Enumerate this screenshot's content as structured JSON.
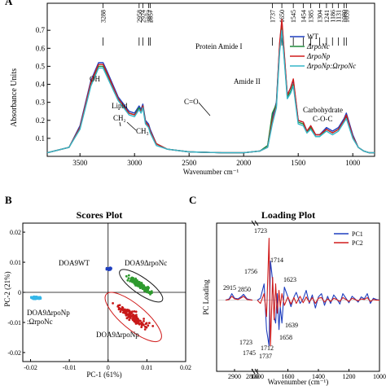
{
  "chart_data": [
    {
      "panel": "A",
      "type": "line",
      "xlabel": "Wavenumber cm⁻¹",
      "ylabel": "Absorbance Units",
      "xlim": [
        3800,
        800
      ],
      "ylim": [
        0,
        0.85
      ],
      "x_ticks": [
        3500,
        3000,
        2500,
        2000,
        1500,
        1000
      ],
      "y_ticks": [
        0.1,
        0.2,
        0.3,
        0.4,
        0.5,
        0.6,
        0.7
      ],
      "peak_labels": [
        "3288",
        "2958",
        "2924",
        "2872",
        "2857",
        "1737",
        "1650",
        "1545",
        "1454",
        "1385",
        "1304",
        "1241",
        "1186",
        "1131",
        "1080",
        "1059"
      ],
      "peak_positions": [
        3288,
        2958,
        2924,
        2872,
        2857,
        1737,
        1650,
        1545,
        1454,
        1385,
        1304,
        1241,
        1186,
        1131,
        1080,
        1059
      ],
      "annotations": [
        "OH",
        "Lipid",
        "CH₂",
        "CH₃",
        "C=O",
        "Protein Amide I",
        "Amide II",
        "Carbohydrate",
        "C-O-C"
      ],
      "legend": [
        "WT",
        "ΔrpoNc",
        "ΔrpoNp",
        "ΔrpoNp:ΩrpoNc"
      ],
      "legend_colors": [
        "#1f3fbf",
        "#1e8a3a",
        "#d01c1c",
        "#35b6c8"
      ],
      "legend_position": "top-right",
      "series": [
        {
          "name": "WT",
          "x": [
            3800,
            3600,
            3500,
            3400,
            3330,
            3288,
            3250,
            3150,
            3050,
            3000,
            2958,
            2940,
            2924,
            2900,
            2872,
            2857,
            2800,
            2700,
            2500,
            2200,
            2000,
            1850,
            1780,
            1737,
            1700,
            1670,
            1650,
            1630,
            1600,
            1570,
            1545,
            1500,
            1454,
            1420,
            1385,
            1340,
            1304,
            1241,
            1186,
            1131,
            1080,
            1059,
            1000,
            950,
            900,
            850,
            800
          ],
          "y": [
            0.02,
            0.05,
            0.17,
            0.42,
            0.52,
            0.52,
            0.47,
            0.33,
            0.25,
            0.24,
            0.28,
            0.26,
            0.29,
            0.2,
            0.18,
            0.15,
            0.07,
            0.04,
            0.025,
            0.02,
            0.02,
            0.03,
            0.06,
            0.22,
            0.3,
            0.62,
            0.75,
            0.58,
            0.34,
            0.38,
            0.42,
            0.2,
            0.19,
            0.14,
            0.17,
            0.12,
            0.12,
            0.16,
            0.14,
            0.16,
            0.21,
            0.24,
            0.12,
            0.05,
            0.03,
            0.02,
            0.02
          ]
        },
        {
          "name": "ΔrpoNc",
          "x": [
            3800,
            3600,
            3500,
            3400,
            3330,
            3288,
            3250,
            3150,
            3050,
            3000,
            2958,
            2940,
            2924,
            2900,
            2872,
            2857,
            2800,
            2700,
            2500,
            2200,
            2000,
            1850,
            1780,
            1737,
            1700,
            1670,
            1650,
            1630,
            1600,
            1570,
            1545,
            1500,
            1454,
            1420,
            1385,
            1340,
            1304,
            1241,
            1186,
            1131,
            1080,
            1059,
            1000,
            950,
            900,
            850,
            800
          ],
          "y": [
            0.02,
            0.05,
            0.16,
            0.4,
            0.5,
            0.5,
            0.45,
            0.32,
            0.24,
            0.23,
            0.27,
            0.25,
            0.28,
            0.19,
            0.17,
            0.14,
            0.07,
            0.04,
            0.025,
            0.02,
            0.02,
            0.03,
            0.06,
            0.24,
            0.29,
            0.6,
            0.72,
            0.56,
            0.33,
            0.36,
            0.4,
            0.19,
            0.18,
            0.13,
            0.16,
            0.11,
            0.11,
            0.15,
            0.13,
            0.15,
            0.2,
            0.22,
            0.11,
            0.05,
            0.03,
            0.02,
            0.02
          ]
        },
        {
          "name": "ΔrpoNp",
          "x": [
            3800,
            3600,
            3500,
            3400,
            3330,
            3288,
            3250,
            3150,
            3050,
            3000,
            2958,
            2940,
            2924,
            2900,
            2872,
            2857,
            2800,
            2700,
            2500,
            2200,
            2000,
            1850,
            1780,
            1737,
            1700,
            1670,
            1650,
            1630,
            1600,
            1570,
            1545,
            1500,
            1454,
            1420,
            1385,
            1340,
            1304,
            1241,
            1186,
            1131,
            1080,
            1059,
            1000,
            950,
            900,
            850,
            800
          ],
          "y": [
            0.02,
            0.05,
            0.16,
            0.41,
            0.51,
            0.51,
            0.46,
            0.32,
            0.24,
            0.23,
            0.26,
            0.25,
            0.28,
            0.19,
            0.17,
            0.14,
            0.07,
            0.04,
            0.025,
            0.02,
            0.02,
            0.03,
            0.05,
            0.2,
            0.28,
            0.63,
            0.76,
            0.59,
            0.34,
            0.38,
            0.43,
            0.2,
            0.19,
            0.14,
            0.17,
            0.12,
            0.12,
            0.15,
            0.13,
            0.15,
            0.2,
            0.23,
            0.11,
            0.05,
            0.03,
            0.02,
            0.02
          ]
        },
        {
          "name": "ΔrpoNp:ΩrpoNc",
          "x": [
            3800,
            3600,
            3500,
            3400,
            3330,
            3288,
            3250,
            3150,
            3050,
            3000,
            2958,
            2940,
            2924,
            2900,
            2872,
            2857,
            2800,
            2700,
            2500,
            2200,
            2000,
            1850,
            1780,
            1737,
            1700,
            1670,
            1650,
            1630,
            1600,
            1570,
            1545,
            1500,
            1454,
            1420,
            1385,
            1340,
            1304,
            1241,
            1186,
            1131,
            1080,
            1059,
            1000,
            950,
            900,
            850,
            800
          ],
          "y": [
            0.02,
            0.05,
            0.15,
            0.39,
            0.49,
            0.49,
            0.44,
            0.31,
            0.23,
            0.22,
            0.26,
            0.24,
            0.27,
            0.18,
            0.16,
            0.13,
            0.06,
            0.04,
            0.025,
            0.02,
            0.02,
            0.03,
            0.05,
            0.18,
            0.27,
            0.58,
            0.7,
            0.55,
            0.32,
            0.35,
            0.39,
            0.18,
            0.17,
            0.13,
            0.15,
            0.11,
            0.11,
            0.14,
            0.12,
            0.14,
            0.19,
            0.21,
            0.1,
            0.05,
            0.03,
            0.02,
            0.02
          ]
        }
      ]
    },
    {
      "panel": "B",
      "type": "scatter",
      "title": "Scores Plot",
      "xlabel": "PC-1 (61%)",
      "ylabel": "PC-2 (21%)",
      "xlim": [
        -0.022,
        0.02
      ],
      "ylim": [
        -0.023,
        0.023
      ],
      "x_ticks": [
        -0.02,
        -0.01,
        0,
        0.01,
        0.02
      ],
      "y_ticks": [
        -0.02,
        -0.01,
        0,
        0.01,
        0.02
      ],
      "x_tick_labels": [
        "-0.02",
        "-0.01",
        "0",
        "0.01",
        "0.02"
      ],
      "y_tick_labels": [
        "-0.02",
        "-0.01",
        "0",
        "0.01",
        "0.02"
      ],
      "groups": [
        {
          "name": "DOA9WT",
          "color": "#1f3fbf",
          "center": [
            0.0003,
            0.0078
          ],
          "spread": [
            0.0009,
            0.0005
          ],
          "n": 50
        },
        {
          "name": "DOA9ΔrpoNc",
          "color": "#2e9a2e",
          "center": [
            0.0085,
            0.0022
          ],
          "spread": [
            0.0035,
            0.003
          ],
          "n": 150
        },
        {
          "name": "DOA9ΔrpoNp",
          "color": "#c81818",
          "center": [
            0.0065,
            -0.0082
          ],
          "spread": [
            0.0048,
            0.0045
          ],
          "n": 150
        },
        {
          "name": "DOA9ΔrpoNp:ΩrpoNc",
          "color": "#35b6e8",
          "center": [
            -0.0185,
            -0.0018
          ],
          "spread": [
            0.0018,
            0.0006
          ],
          "n": 60
        }
      ],
      "label_texts": [
        "DOA9WT",
        "DOA9ΔrpoNc",
        "DOA9ΔrpoNp",
        "DOA9ΔrpoNp",
        ":ΩrpoNc"
      ]
    },
    {
      "panel": "C",
      "type": "line",
      "title": "Loading Plot",
      "xlabel": "Wavenumber (cm⁻¹)",
      "ylabel": "PC Loading",
      "xlim": [
        3000,
        1000
      ],
      "x_break": [
        2800,
        1800
      ],
      "x_ticks": [
        2900,
        2800,
        1800,
        1600,
        1400,
        1200,
        1000
      ],
      "legend": [
        "PC1",
        "PC2"
      ],
      "legend_colors": [
        "#1f3fbf",
        "#d01c1c"
      ],
      "legend_position": "top-right",
      "peak_labels": [
        "1723",
        "1714",
        "1756",
        "1623",
        "2915",
        "2850",
        "1639",
        "1658",
        "1723",
        "1745",
        "1712",
        "1737"
      ],
      "series": [
        {
          "name": "PC1",
          "x": [
            2950,
            2930,
            2915,
            2900,
            2880,
            2860,
            2850,
            2830,
            2800,
            1800,
            1780,
            1756,
            1740,
            1723,
            1714,
            1700,
            1690,
            1680,
            1670,
            1658,
            1650,
            1639,
            1623,
            1600,
            1580,
            1560,
            1545,
            1520,
            1500,
            1480,
            1460,
            1440,
            1420,
            1400,
            1380,
            1360,
            1340,
            1320,
            1300,
            1280,
            1260,
            1240,
            1220,
            1200,
            1180,
            1160,
            1140,
            1120,
            1100,
            1080,
            1060,
            1040,
            1020,
            1000
          ],
          "y": [
            0.0,
            0.02,
            0.1,
            0.03,
            0.02,
            0.06,
            0.09,
            0.02,
            0.0,
            0.0,
            0.03,
            0.25,
            -0.45,
            -0.7,
            0.6,
            0.3,
            -0.25,
            -0.35,
            0.1,
            -0.45,
            -0.1,
            -0.35,
            0.2,
            0.05,
            -0.1,
            0.05,
            0.12,
            -0.05,
            0.02,
            0.15,
            -0.05,
            0.08,
            -0.12,
            0.05,
            0.1,
            -0.08,
            0.06,
            -0.05,
            0.08,
            0.02,
            -0.06,
            0.1,
            0.03,
            -0.04,
            0.06,
            0.02,
            -0.03,
            0.05,
            0.02,
            0.1,
            -0.05,
            0.03,
            0.01,
            0.0
          ]
        },
        {
          "name": "PC2",
          "x": [
            2950,
            2930,
            2915,
            2900,
            2880,
            2860,
            2850,
            2830,
            2800,
            1800,
            1780,
            1756,
            1740,
            1723,
            1714,
            1700,
            1690,
            1680,
            1670,
            1658,
            1650,
            1639,
            1623,
            1600,
            1580,
            1560,
            1545,
            1520,
            1500,
            1480,
            1460,
            1440,
            1420,
            1400,
            1380,
            1360,
            1340,
            1320,
            1300,
            1280,
            1260,
            1240,
            1220,
            1200,
            1180,
            1160,
            1140,
            1120,
            1100,
            1080,
            1060,
            1040,
            1020,
            1000
          ],
          "y": [
            0.0,
            0.01,
            0.06,
            0.02,
            0.01,
            0.04,
            0.06,
            0.01,
            0.0,
            0.0,
            -0.05,
            0.1,
            -0.25,
            0.95,
            -0.7,
            0.35,
            -0.3,
            0.25,
            -0.2,
            0.15,
            -0.1,
            0.1,
            -0.08,
            0.05,
            -0.06,
            0.04,
            -0.05,
            0.06,
            -0.04,
            0.05,
            -0.03,
            0.04,
            -0.05,
            0.03,
            0.04,
            -0.03,
            0.02,
            -0.02,
            0.03,
            0.01,
            -0.02,
            0.04,
            0.01,
            -0.02,
            0.03,
            0.01,
            -0.01,
            0.02,
            0.01,
            0.04,
            -0.02,
            0.01,
            0.0,
            0.0
          ]
        }
      ]
    }
  ],
  "panels": {
    "a": "A",
    "b": "B",
    "c": "C"
  },
  "scores_labels": {
    "wt": "DOA9WT",
    "npc_1": "DOA9ΔrpoNc",
    "np_1": "DOA9ΔrpoNp",
    "npnc_1": "DOA9ΔrpoNp",
    "npnc_2": ":ΩrpoNc"
  }
}
